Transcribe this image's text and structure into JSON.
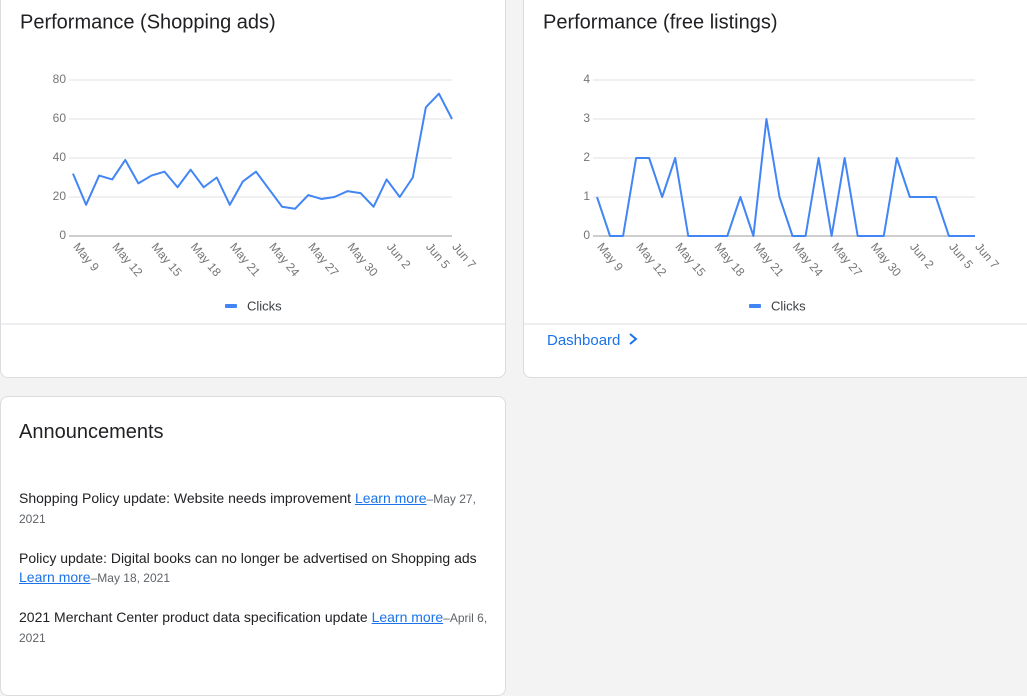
{
  "chart_data": [
    {
      "type": "line",
      "title": "Performance (Shopping ads)",
      "categories": [
        "May 9",
        null,
        null,
        "May 12",
        null,
        null,
        "May 15",
        null,
        null,
        "May 18",
        null,
        null,
        "May 21",
        null,
        null,
        "May 24",
        null,
        null,
        "May 27",
        null,
        null,
        "May 30",
        null,
        null,
        "Jun 2",
        null,
        null,
        "Jun 5",
        null,
        "Jun 7"
      ],
      "series": [
        {
          "name": "Clicks",
          "color": "#4285f4",
          "values": [
            32,
            16,
            31,
            29,
            39,
            27,
            31,
            33,
            25,
            34,
            25,
            30,
            16,
            28,
            33,
            24,
            15,
            14,
            21,
            19,
            20,
            23,
            22,
            15,
            29,
            20,
            30,
            66,
            73,
            60
          ]
        }
      ],
      "ylim": [
        0,
        80
      ],
      "yticks": [
        0,
        20,
        40,
        60,
        80
      ],
      "grid": true,
      "legend": "bottom"
    },
    {
      "type": "line",
      "title": "Performance (free listings)",
      "categories": [
        "May 9",
        null,
        null,
        "May 12",
        null,
        null,
        "May 15",
        null,
        null,
        "May 18",
        null,
        null,
        "May 21",
        null,
        null,
        "May 24",
        null,
        null,
        "May 27",
        null,
        null,
        "May 30",
        null,
        null,
        "Jun 2",
        null,
        null,
        "Jun 5",
        null,
        "Jun 7"
      ],
      "series": [
        {
          "name": "Clicks",
          "color": "#4285f4",
          "values": [
            1,
            0,
            0,
            2,
            2,
            1,
            2,
            0,
            0,
            0,
            0,
            1,
            0,
            3,
            1,
            0,
            0,
            2,
            0,
            2,
            0,
            0,
            0,
            2,
            1,
            1,
            1,
            0,
            0,
            0
          ]
        }
      ],
      "ylim": [
        0,
        4
      ],
      "yticks": [
        0,
        1,
        2,
        3,
        4
      ],
      "grid": true,
      "legend": "bottom"
    }
  ],
  "dashboard_link": "Dashboard",
  "announcements": {
    "title": "Announcements",
    "separator": "–",
    "items": [
      {
        "text": "Shopping Policy update: Website needs improvement",
        "link": "Learn more",
        "date": "May 27, 2021"
      },
      {
        "text": "Policy update: Digital books can no longer be advertised on Shopping ads",
        "link": "Learn more",
        "date": "May 18, 2021"
      },
      {
        "text": "2021 Merchant Center product data specification update",
        "link": "Learn more",
        "date": "April 6, 2021"
      }
    ]
  }
}
